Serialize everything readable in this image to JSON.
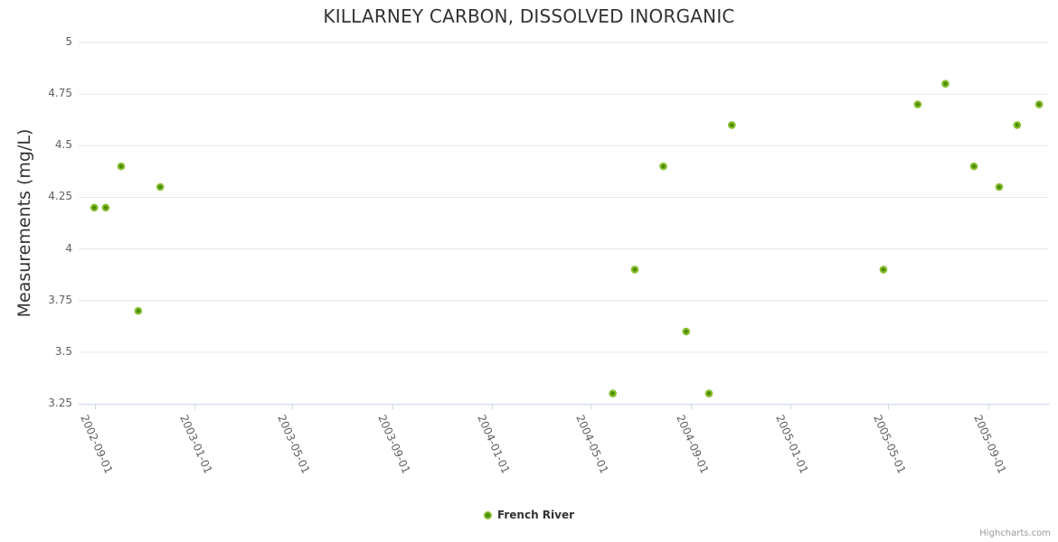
{
  "credit": "Highcharts.com",
  "chart_data": {
    "type": "scatter",
    "title": "KILLARNEY CARBON, DISSOLVED INORGANIC",
    "xlabel": "",
    "ylabel": "Measurements (mg/L)",
    "ylim": [
      3.25,
      5
    ],
    "y_ticks": [
      5,
      4.75,
      4.5,
      4.25,
      4,
      3.75,
      3.5,
      3.25
    ],
    "x_ticks": [
      "2002-09-01",
      "2003-01-01",
      "2003-05-01",
      "2003-09-01",
      "2004-01-01",
      "2004-05-01",
      "2004-09-01",
      "2005-01-01",
      "2005-05-01",
      "2005-09-01"
    ],
    "x_range": [
      "2002-08-13",
      "2005-11-14"
    ],
    "grid": "horizontal-only",
    "legend_position": "bottom-center",
    "series": [
      {
        "name": "French River",
        "points": [
          [
            "2002-08-31",
            4.2
          ],
          [
            "2002-09-14",
            4.2
          ],
          [
            "2002-10-03",
            4.4
          ],
          [
            "2002-10-24",
            3.7
          ],
          [
            "2002-11-20",
            4.3
          ],
          [
            "2004-05-28",
            3.3
          ],
          [
            "2004-06-24",
            3.9
          ],
          [
            "2004-07-29",
            4.4
          ],
          [
            "2004-08-26",
            3.6
          ],
          [
            "2004-09-23",
            3.3
          ],
          [
            "2004-10-21",
            4.6
          ],
          [
            "2005-04-25",
            3.9
          ],
          [
            "2005-06-06",
            4.7
          ],
          [
            "2005-07-10",
            4.8
          ],
          [
            "2005-08-14",
            4.4
          ],
          [
            "2005-09-14",
            4.3
          ],
          [
            "2005-10-06",
            4.6
          ],
          [
            "2005-11-02",
            4.7
          ]
        ]
      }
    ]
  },
  "colors": {
    "marker_fill": "#4a8a00",
    "marker_ring": "#86bd2e",
    "grid": "#e6e6e6",
    "axis_line": "#ccd6eb",
    "tick_label": "#606060",
    "title": "#333333",
    "legend_text": "#333333",
    "credit": "#999999"
  }
}
